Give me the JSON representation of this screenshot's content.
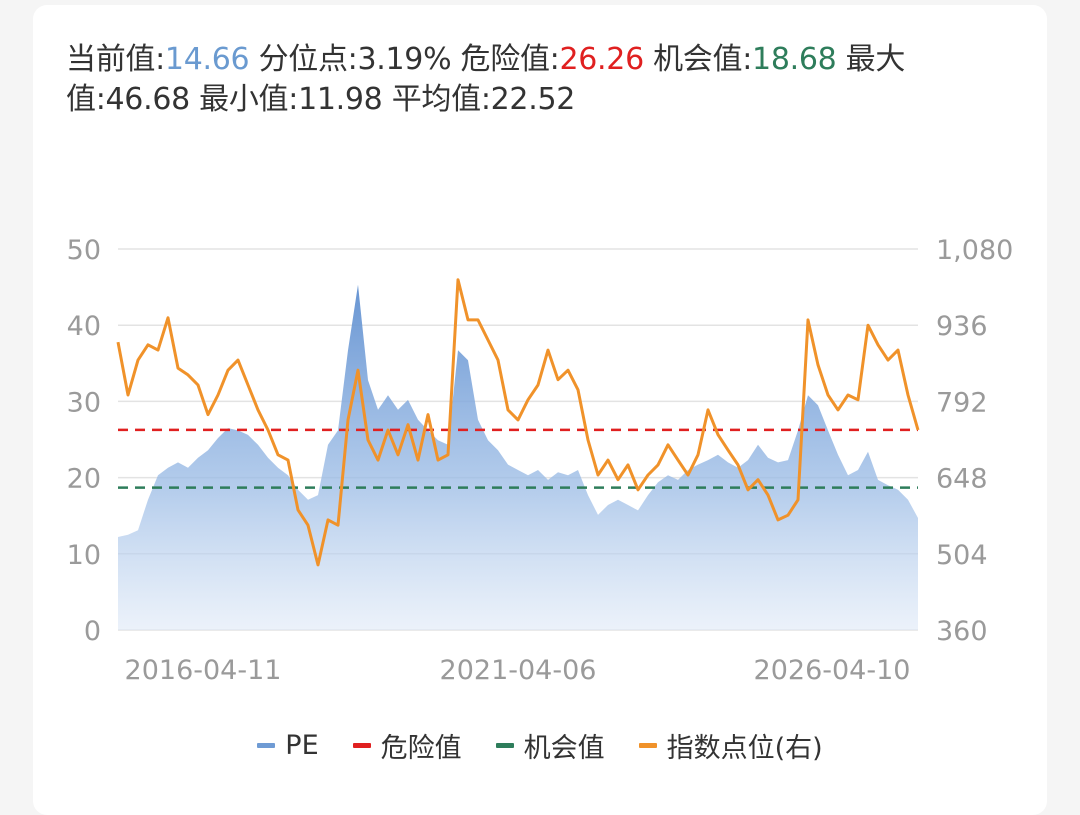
{
  "summary": {
    "current_label": "当前值:",
    "current_value": "14.66",
    "percentile_label": "分位点:",
    "percentile_value": "3.19%",
    "danger_label": "危险值:",
    "danger_value": "26.26",
    "chance_label": "机会值:",
    "chance_value": "18.68",
    "max_label": "最大值:",
    "max_value": "46.68",
    "min_label": "最小值:",
    "min_value": "11.98",
    "avg_label": "平均值:",
    "avg_value": "22.52"
  },
  "colors": {
    "pe": "#6f9bd4",
    "danger": "#e02020",
    "chance": "#2e7d5b",
    "index": "#f0922a",
    "grid": "#e3e3e3",
    "axis_text": "#9a9a9a"
  },
  "legend": [
    {
      "label": "PE",
      "color": "#6f9bd4"
    },
    {
      "label": "危险值",
      "color": "#e02020"
    },
    {
      "label": "机会值",
      "color": "#2e7d5b"
    },
    {
      "label": "指数点位(右)",
      "color": "#f0922a"
    }
  ],
  "chart_data": {
    "type": "line",
    "title": "",
    "xlabel": "",
    "ylabel": "PE",
    "ylabel_right": "指数点位",
    "x_tick_labels": [
      "2016-04-11",
      "2021-04-06",
      "2026-04-10"
    ],
    "x_start": "2016-04-11",
    "x_end": "2026-04-10",
    "ylim": [
      0,
      50
    ],
    "y_ticks": [
      0,
      10,
      20,
      30,
      40,
      50
    ],
    "ylim_right": [
      360,
      1080
    ],
    "y_ticks_right": [
      "360",
      "504",
      "648",
      "792",
      "936",
      "1,080"
    ],
    "grid": true,
    "legend_position": "bottom",
    "reference_lines": [
      {
        "name": "危险值",
        "value": 26.26,
        "style": "dashed",
        "color": "#e02020"
      },
      {
        "name": "机会值",
        "value": 18.68,
        "style": "dashed",
        "color": "#2e7d5b"
      }
    ],
    "series": [
      {
        "name": "PE",
        "type": "area",
        "axis": "left",
        "values": [
          12.2,
          12.5,
          13.1,
          17.1,
          20.3,
          21.3,
          22.0,
          21.3,
          22.6,
          23.6,
          25.2,
          26.5,
          26.2,
          25.6,
          24.3,
          22.6,
          21.3,
          20.3,
          18.4,
          17.1,
          17.7,
          24.3,
          26.2,
          36.7,
          45.3,
          32.8,
          28.9,
          30.8,
          28.9,
          30.2,
          27.6,
          26.2,
          24.9,
          24.3,
          36.7,
          35.4,
          27.6,
          24.9,
          23.6,
          21.7,
          21.0,
          20.3,
          21.0,
          19.7,
          20.7,
          20.3,
          21.0,
          17.7,
          15.1,
          16.4,
          17.1,
          16.4,
          15.7,
          17.7,
          19.4,
          20.3,
          19.7,
          21.0,
          21.7,
          22.3,
          23.0,
          22.0,
          21.3,
          22.3,
          24.3,
          22.6,
          22.0,
          22.3,
          26.2,
          30.8,
          29.5,
          26.2,
          23.0,
          20.3,
          21.0,
          23.4,
          19.7,
          19.0,
          18.4,
          17.1,
          14.7
        ]
      },
      {
        "name": "指数点位(右)",
        "type": "line",
        "axis": "right",
        "values": [
          904,
          804,
          870,
          899,
          889,
          950,
          855,
          842,
          823,
          767,
          804,
          851,
          870,
          823,
          776,
          738,
          691,
          681,
          587,
          558,
          483,
          568,
          558,
          757,
          851,
          719,
          681,
          738,
          691,
          748,
          681,
          767,
          681,
          691,
          1022,
          946,
          946,
          908,
          870,
          776,
          757,
          795,
          823,
          889,
          833,
          851,
          814,
          719,
          653,
          681,
          644,
          672,
          625,
          653,
          672,
          710,
          681,
          653,
          691,
          776,
          729,
          700,
          672,
          625,
          644,
          615,
          568,
          577,
          606,
          946,
          861,
          804,
          776,
          804,
          795,
          936,
          899,
          870,
          889,
          804,
          738
        ]
      }
    ]
  }
}
